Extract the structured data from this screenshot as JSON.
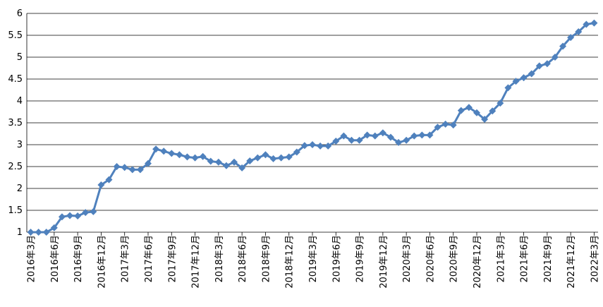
{
  "chart_data": {
    "type": "line",
    "categories": [
      "2016年3月",
      null,
      null,
      "2016年6月",
      null,
      null,
      "2016年9月",
      null,
      null,
      "2016年12月",
      null,
      null,
      "2017年3月",
      null,
      null,
      "2017年6月",
      null,
      null,
      "2017年9月",
      null,
      null,
      "2017年12月",
      null,
      null,
      "2018年3月",
      null,
      null,
      "2018年6月",
      null,
      null,
      "2018年9月",
      null,
      null,
      "2018年12月",
      null,
      null,
      "2019年3月",
      null,
      null,
      "2019年6月",
      null,
      null,
      "2019年9月",
      null,
      null,
      "2019年12月",
      null,
      null,
      "2020年3月",
      null,
      null,
      "2020年6月",
      null,
      null,
      "2020年9月",
      null,
      null,
      "2020年12月",
      null,
      null,
      "2021年3月",
      null,
      null,
      "2021年6月",
      null,
      null,
      "2021年9月",
      null,
      null,
      "2021年12月",
      null,
      null,
      "2022年3月"
    ],
    "series": [
      {
        "color": "#4f81bd",
        "values": [
          1.0,
          1.0,
          1.0,
          1.1,
          1.35,
          1.38,
          1.37,
          1.45,
          1.47,
          2.08,
          2.2,
          2.5,
          2.48,
          2.43,
          2.43,
          2.57,
          2.9,
          2.85,
          2.8,
          2.77,
          2.72,
          2.7,
          2.73,
          2.62,
          2.6,
          2.52,
          2.6,
          2.47,
          2.63,
          2.7,
          2.77,
          2.68,
          2.7,
          2.72,
          2.83,
          2.98,
          3.0,
          2.97,
          2.97,
          3.08,
          3.2,
          3.1,
          3.1,
          3.22,
          3.2,
          3.27,
          3.17,
          3.05,
          3.1,
          3.2,
          3.22,
          3.22,
          3.4,
          3.47,
          3.45,
          3.78,
          3.85,
          3.73,
          3.58,
          3.77,
          3.95,
          4.3,
          4.45,
          4.53,
          4.62,
          4.8,
          4.85,
          5.0,
          5.25,
          5.45,
          5.58,
          5.75,
          5.78
        ]
      }
    ],
    "ylim": [
      1,
      6
    ],
    "yticks": [
      1,
      1.5,
      2,
      2.5,
      3,
      3.5,
      4,
      4.5,
      5,
      5.5,
      6
    ],
    "grid": true
  }
}
